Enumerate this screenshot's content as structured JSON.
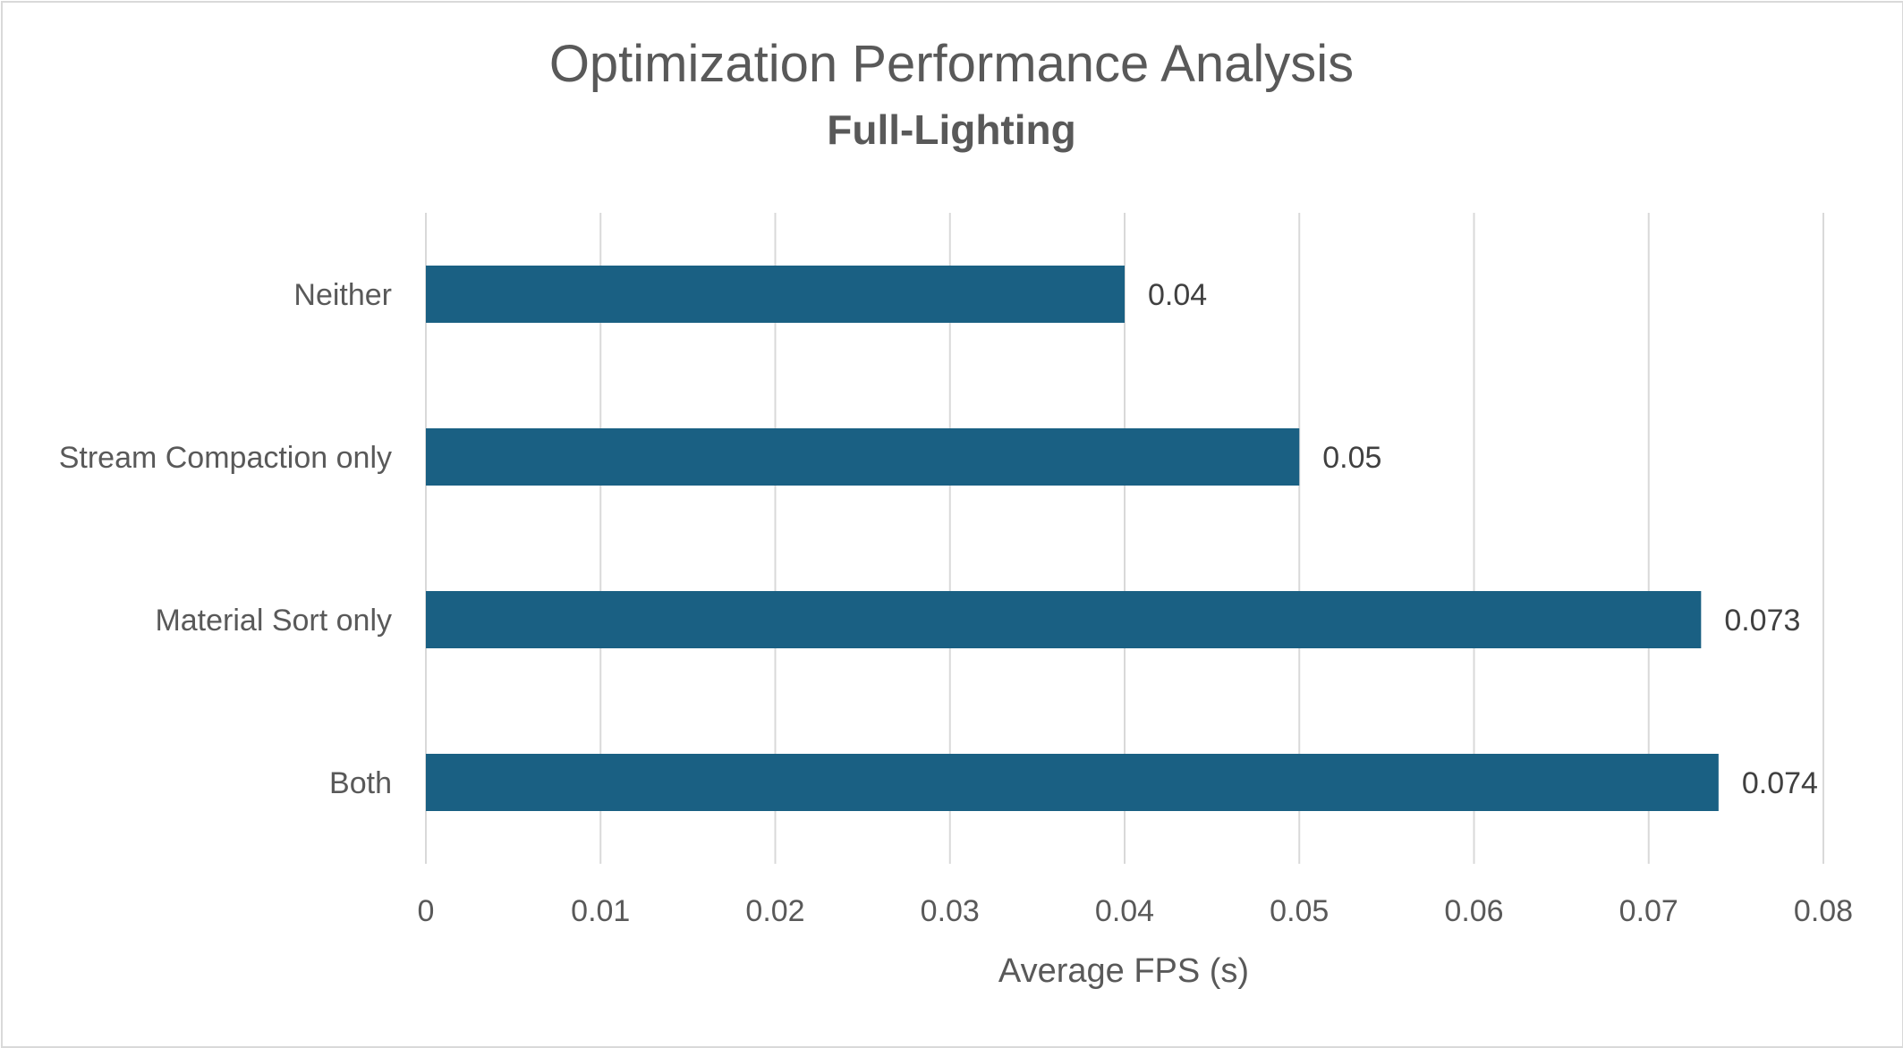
{
  "chart_data": {
    "type": "bar",
    "orientation": "horizontal",
    "title": "Optimization Performance Analysis",
    "subtitle": "Full-Lighting",
    "xlabel": "Average FPS (s)",
    "ylabel": "",
    "categories": [
      "Neither",
      "Stream Compaction only",
      "Material Sort only",
      "Both"
    ],
    "values": [
      0.04,
      0.05,
      0.073,
      0.074
    ],
    "data_labels": [
      "0.04",
      "0.05",
      "0.073",
      "0.074"
    ],
    "xlim": [
      0,
      0.08
    ],
    "x_ticks": [
      0,
      0.01,
      0.02,
      0.03,
      0.04,
      0.05,
      0.06,
      0.07,
      0.08
    ],
    "x_tick_labels": [
      "0",
      "0.01",
      "0.02",
      "0.03",
      "0.04",
      "0.05",
      "0.06",
      "0.07",
      "0.08"
    ],
    "grid": "vertical",
    "legend": "none",
    "bar_color": "#1a6083",
    "gridline_color": "#d9d9d9",
    "text_color": "#595959"
  }
}
